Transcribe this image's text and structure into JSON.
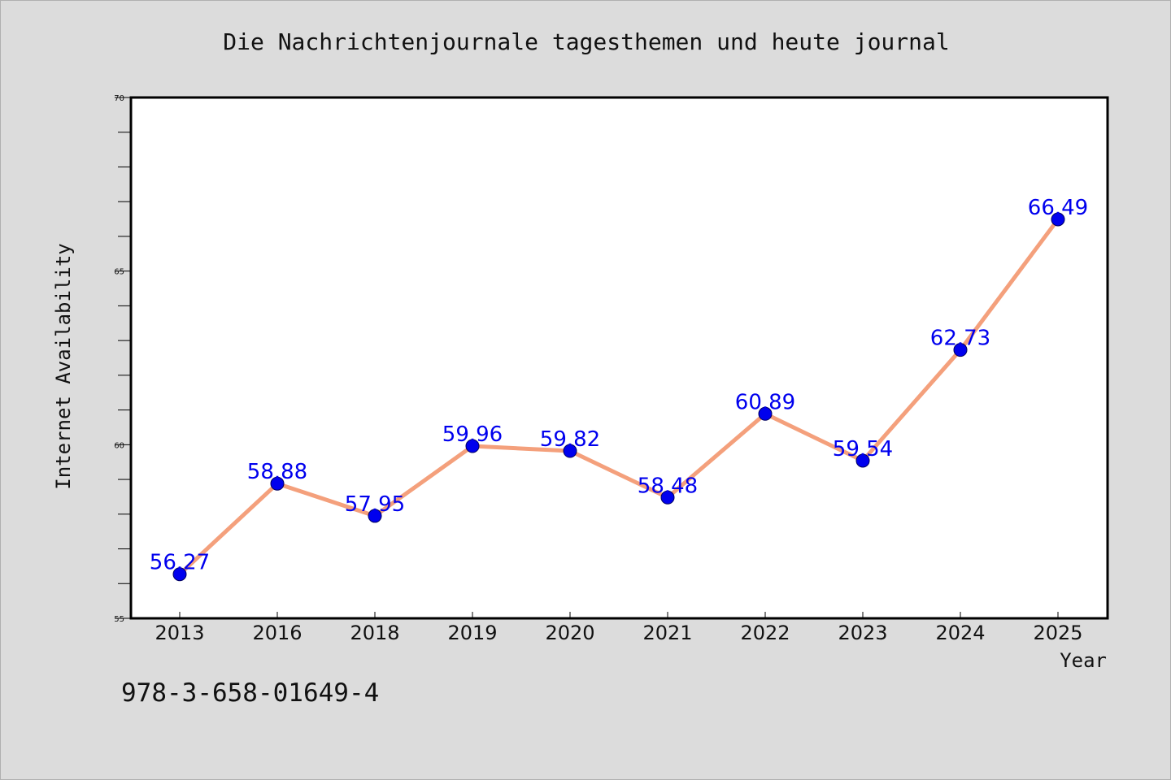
{
  "chart_data": {
    "type": "line",
    "title": "Die Nachrichtenjournale tagesthemen und heute journal",
    "xlabel": "Year",
    "ylabel": "Internet Availability",
    "categories": [
      "2013",
      "2016",
      "2018",
      "2019",
      "2020",
      "2021",
      "2022",
      "2023",
      "2024",
      "2025"
    ],
    "series": [
      {
        "values": [
          56.27,
          58.88,
          57.95,
          59.96,
          59.82,
          58.48,
          60.89,
          59.54,
          62.73,
          66.49
        ]
      }
    ],
    "data_labels": [
      "56.27",
      "58.88",
      "57.95",
      "59.96",
      "59.82",
      "58.48",
      "60.89",
      "59.54",
      "62.73",
      "66.49"
    ],
    "ylim": [
      55,
      70
    ],
    "y_ticks": [
      "55",
      "60",
      "65",
      "70"
    ],
    "grid": false,
    "line_color": "#f4a07c",
    "marker_color": "#0000ee",
    "label_color": "#0000ee"
  },
  "annotation": "978-3-658-01649-4"
}
